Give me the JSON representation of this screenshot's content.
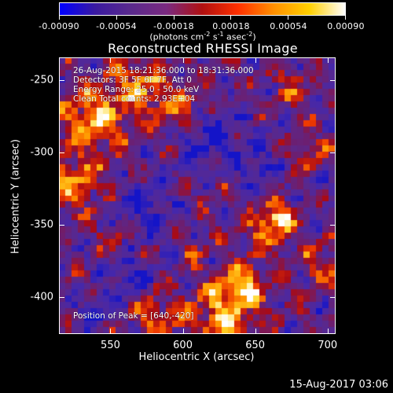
{
  "colorbar": {
    "tick_labels": [
      "-0.00090",
      "-0.00054",
      "-0.00018",
      "0.00018",
      "0.00054",
      "0.00090"
    ],
    "units": "(photons cm",
    "units_exp1": "-2",
    "units_mid": " s",
    "units_exp2": "-1",
    "units_mid2": " asec",
    "units_exp3": "-2",
    "units_end": ")",
    "colors": [
      "#0000ff",
      "#3a1aa0",
      "#5a2a8c",
      "#7a2a80",
      "#b01010",
      "#ff3000",
      "#ff9000",
      "#ffd000",
      "#ffffff"
    ]
  },
  "title": "Reconstructed RHESSI Image",
  "annotations": {
    "time": "26-Aug-2015 18:21:36.000 to 18:31:36.000",
    "detectors": "Detectors: 3F 5F 6F 7F, Att 0",
    "energy": "Energy Range: 25.0 - 50.0 keV",
    "clean": "Clean     Total counts: 2.93E+04",
    "peak": "Position of Peak = [640,-420]"
  },
  "axes": {
    "x_title": "Heliocentric X (arcsec)",
    "y_title": "Heliocentric Y (arcsec)",
    "x_ticks": [
      "550",
      "600",
      "650",
      "700"
    ],
    "y_ticks": [
      "-250",
      "-300",
      "-350",
      "-400"
    ],
    "x_range": [
      515,
      705
    ],
    "y_range": [
      -425,
      -235
    ]
  },
  "footer": {
    "timestamp": "15-Aug-2017 03:06"
  }
}
